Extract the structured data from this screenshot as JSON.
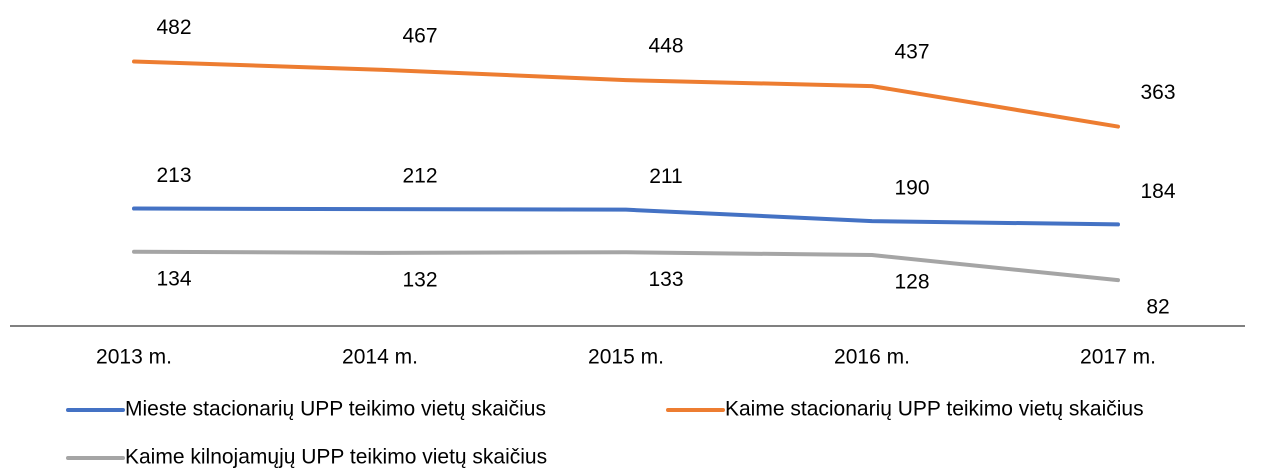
{
  "chart_data": {
    "type": "line",
    "categories": [
      "2013 m.",
      "2014 m.",
      "2015 m.",
      "2016 m.",
      "2017 m."
    ],
    "series": [
      {
        "name": "Mieste stacionarių UPP teikimo vietų skaičius",
        "color": "#4472c4",
        "values": [
          213,
          212,
          211,
          190,
          184
        ]
      },
      {
        "name": "Kaime stacionarių UPP teikimo vietų skaičius",
        "color": "#ed7d31",
        "values": [
          482,
          467,
          448,
          437,
          363
        ]
      },
      {
        "name": "Kaime kilnojamųjų UPP teikimo vietų skaičius",
        "color": "#a5a5a5",
        "values": [
          134,
          132,
          133,
          128,
          82
        ]
      }
    ],
    "ylim": [
      0,
      600
    ],
    "legend": "bottom"
  }
}
